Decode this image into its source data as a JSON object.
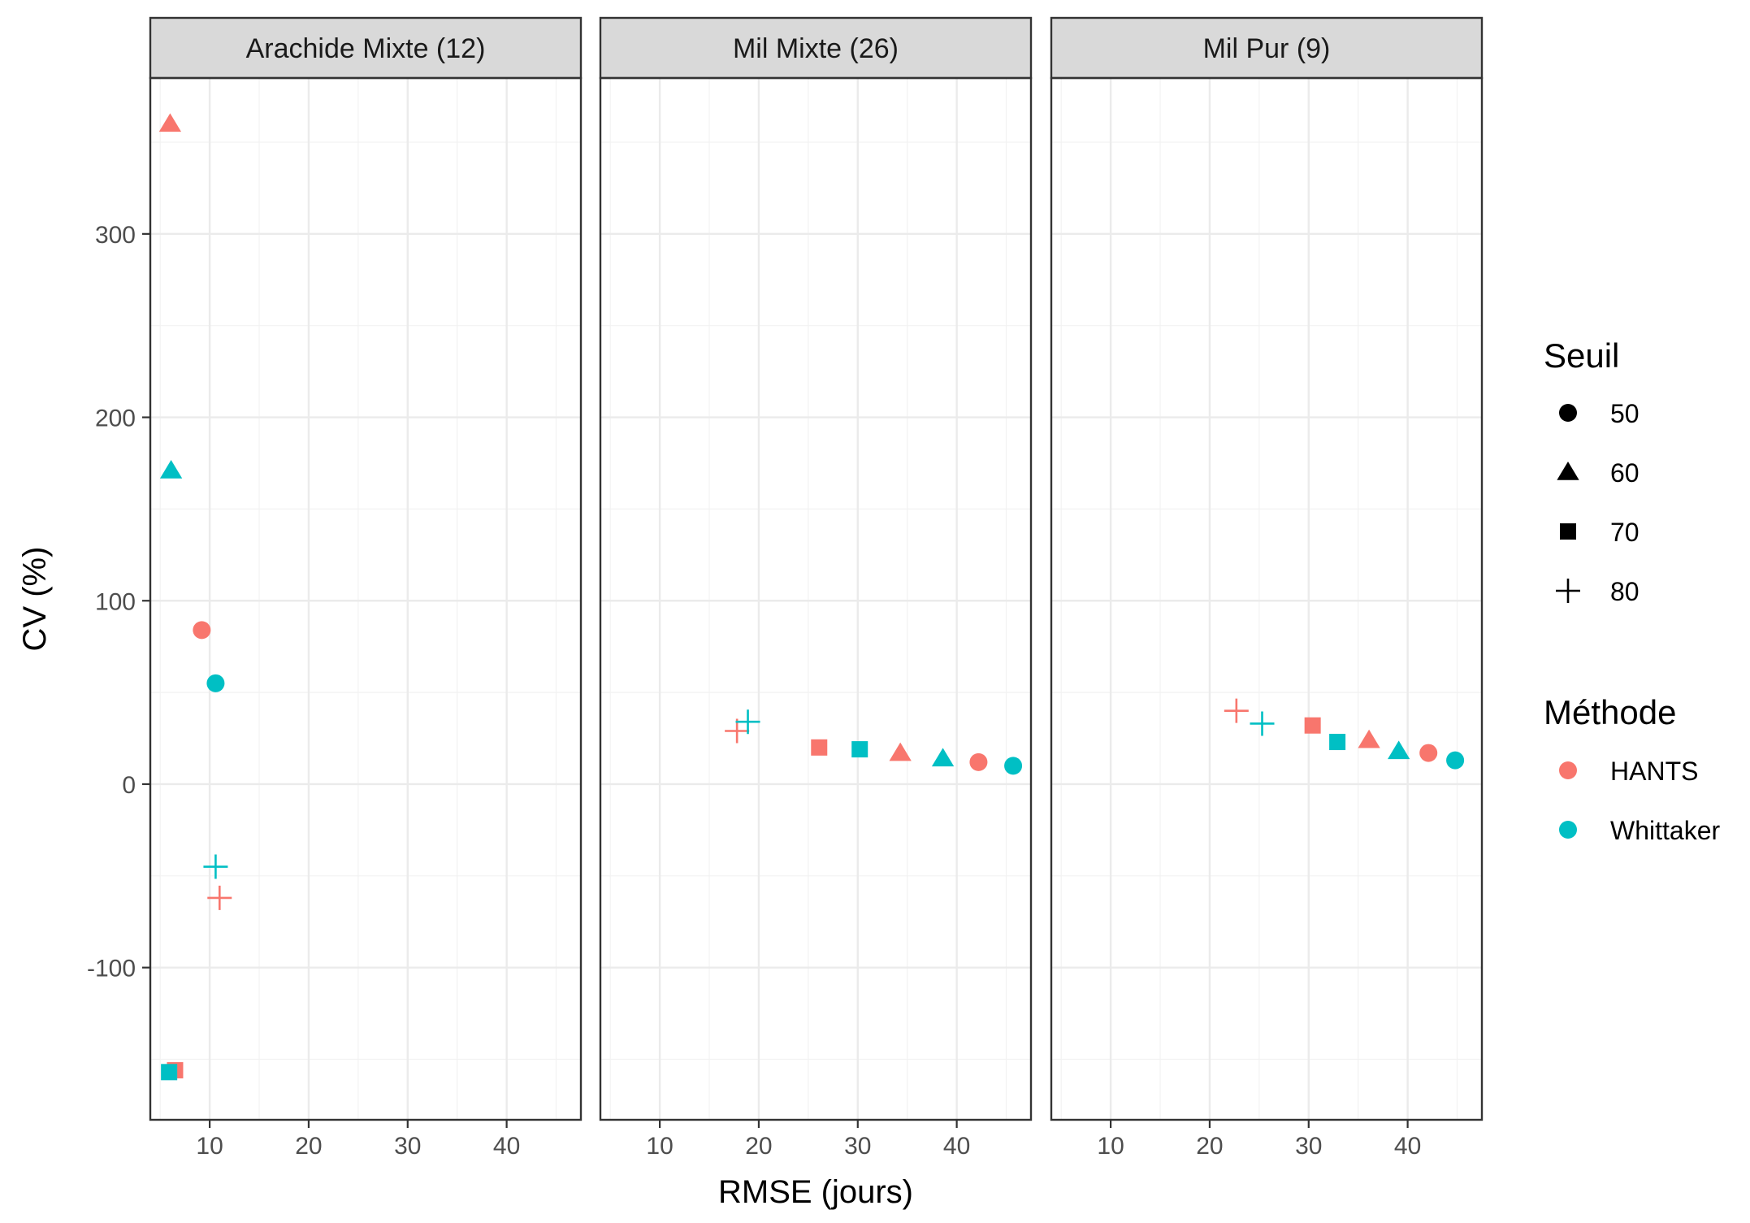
{
  "chart_data": {
    "type": "scatter",
    "xlabel": "RMSE (jours)",
    "ylabel": "CV (%)",
    "xlim": [
      4,
      47.5
    ],
    "ylim": [
      -183,
      385
    ],
    "x_ticks": [
      10,
      20,
      30,
      40
    ],
    "y_ticks": [
      -100,
      0,
      100,
      200,
      300
    ],
    "grid": true,
    "legend_placement": "right",
    "facets": [
      {
        "title": "Arachide Mixte (12)",
        "points": [
          {
            "method": "HANTS",
            "seuil": "60",
            "x": 6.0,
            "y": 360
          },
          {
            "method": "Whittaker",
            "seuil": "60",
            "x": 6.1,
            "y": 171
          },
          {
            "method": "HANTS",
            "seuil": "50",
            "x": 9.2,
            "y": 84
          },
          {
            "method": "Whittaker",
            "seuil": "50",
            "x": 10.6,
            "y": 55
          },
          {
            "method": "Whittaker",
            "seuil": "80",
            "x": 10.6,
            "y": -45
          },
          {
            "method": "HANTS",
            "seuil": "80",
            "x": 11.0,
            "y": -62
          },
          {
            "method": "HANTS",
            "seuil": "70",
            "x": 6.5,
            "y": -156
          },
          {
            "method": "Whittaker",
            "seuil": "70",
            "x": 5.9,
            "y": -157
          }
        ]
      },
      {
        "title": "Mil Mixte (26)",
        "points": [
          {
            "method": "HANTS",
            "seuil": "80",
            "x": 17.8,
            "y": 29
          },
          {
            "method": "Whittaker",
            "seuil": "80",
            "x": 18.9,
            "y": 34
          },
          {
            "method": "HANTS",
            "seuil": "70",
            "x": 26.1,
            "y": 20
          },
          {
            "method": "Whittaker",
            "seuil": "70",
            "x": 30.2,
            "y": 19
          },
          {
            "method": "HANTS",
            "seuil": "60",
            "x": 34.3,
            "y": 17
          },
          {
            "method": "Whittaker",
            "seuil": "60",
            "x": 38.6,
            "y": 14
          },
          {
            "method": "HANTS",
            "seuil": "50",
            "x": 42.2,
            "y": 12
          },
          {
            "method": "Whittaker",
            "seuil": "50",
            "x": 45.7,
            "y": 10
          }
        ]
      },
      {
        "title": "Mil Pur (9)",
        "points": [
          {
            "method": "HANTS",
            "seuil": "80",
            "x": 22.7,
            "y": 40
          },
          {
            "method": "Whittaker",
            "seuil": "80",
            "x": 25.3,
            "y": 33
          },
          {
            "method": "HANTS",
            "seuil": "70",
            "x": 30.4,
            "y": 32
          },
          {
            "method": "Whittaker",
            "seuil": "70",
            "x": 32.9,
            "y": 23
          },
          {
            "method": "HANTS",
            "seuil": "60",
            "x": 36.1,
            "y": 24
          },
          {
            "method": "Whittaker",
            "seuil": "60",
            "x": 39.1,
            "y": 18
          },
          {
            "method": "HANTS",
            "seuil": "50",
            "x": 42.1,
            "y": 17
          },
          {
            "method": "Whittaker",
            "seuil": "50",
            "x": 44.8,
            "y": 13
          }
        ]
      }
    ],
    "legend_seuil": {
      "title": "Seuil",
      "items": [
        {
          "label": "50",
          "shape": "circle"
        },
        {
          "label": "60",
          "shape": "triangle"
        },
        {
          "label": "70",
          "shape": "square"
        },
        {
          "label": "80",
          "shape": "plus"
        }
      ]
    },
    "legend_methode": {
      "title": "Méthode",
      "items": [
        {
          "label": "HANTS",
          "color": "#F8766D"
        },
        {
          "label": "Whittaker",
          "color": "#00BFC4"
        }
      ]
    },
    "colors": {
      "HANTS": "#F8766D",
      "Whittaker": "#00BFC4"
    }
  }
}
